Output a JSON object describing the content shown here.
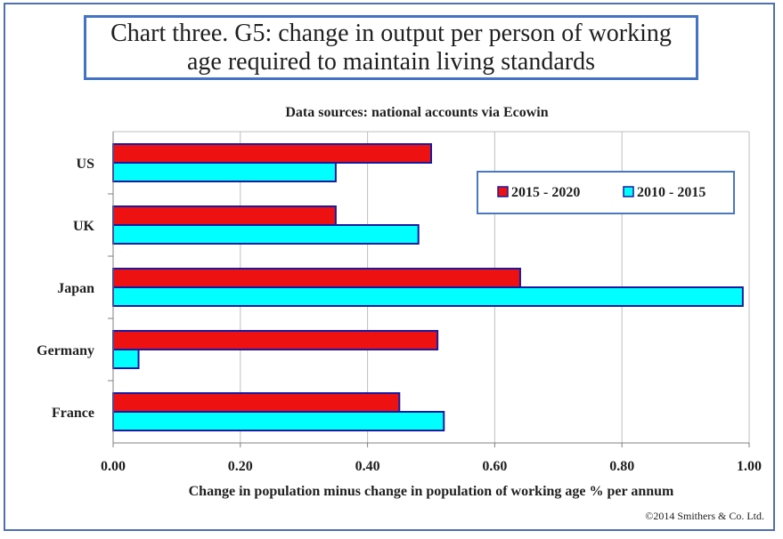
{
  "chart_data": {
    "type": "bar",
    "orientation": "horizontal",
    "title": "Chart three. G5: change in output per person of working age required to maintain living standards",
    "subtitle": "Data sources: national accounts via Ecowin",
    "xlabel": "Change in population minus change in population of working age % per annum",
    "ylabel": "",
    "categories": [
      "US",
      "UK",
      "Japan",
      "Germany",
      "France"
    ],
    "series": [
      {
        "name": "2015 - 2020",
        "color": "#ee1111",
        "values": [
          0.5,
          0.35,
          0.64,
          0.51,
          0.45
        ]
      },
      {
        "name": "2010 - 2015",
        "color": "#00ffff",
        "values": [
          0.35,
          0.48,
          0.99,
          0.04,
          0.52
        ]
      }
    ],
    "xlim": [
      0,
      1.0
    ],
    "xticks": [
      "0.00",
      "0.20",
      "0.40",
      "0.60",
      "0.80",
      "1.00"
    ],
    "grid": true,
    "legend_position": "top-right",
    "copyright": "©2014  Smithers & Co. Ltd."
  }
}
